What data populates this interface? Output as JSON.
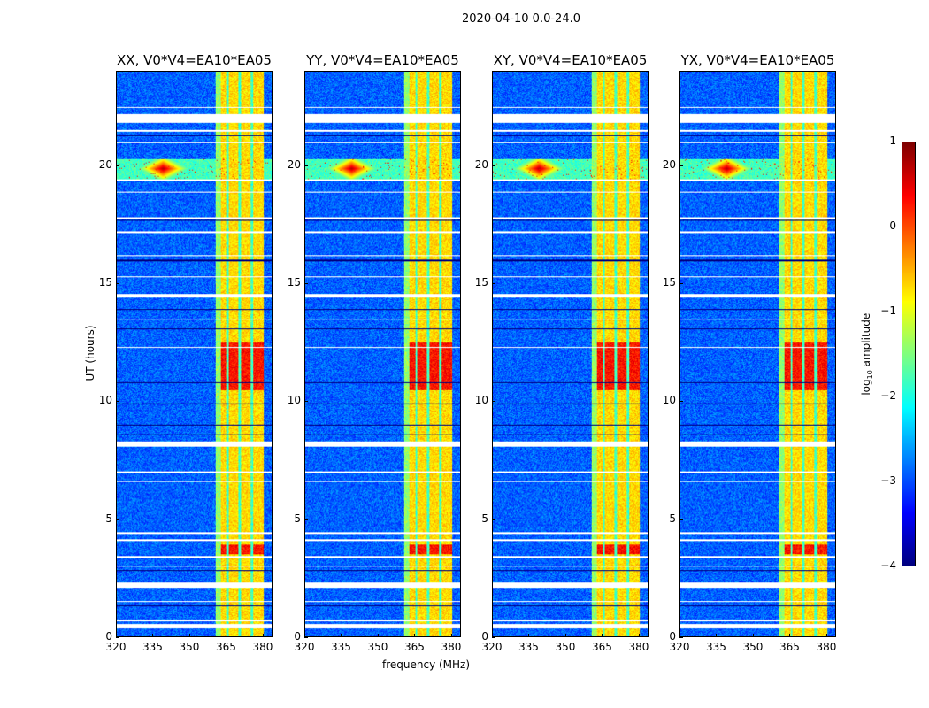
{
  "chart_data": {
    "type": "heatmap",
    "title": "2020-04-10 0.0-24.0",
    "xlabel": "frequency (MHz)",
    "ylabel": "UT (hours)",
    "xlim": [
      320,
      384
    ],
    "ylim": [
      0,
      24
    ],
    "xticks": [
      "320",
      "335",
      "350",
      "365",
      "380"
    ],
    "xtick_values": [
      320,
      335,
      350,
      365,
      380
    ],
    "yticks": [
      "0",
      "5",
      "10",
      "15",
      "20"
    ],
    "ytick_values": [
      0,
      5,
      10,
      15,
      20
    ],
    "panels": [
      {
        "title": "XX, V0*V4=EA10*EA05"
      },
      {
        "title": "YY, V0*V4=EA10*EA05"
      },
      {
        "title": "XY, V0*V4=EA10*EA05"
      },
      {
        "title": "YX, V0*V4=EA10*EA05"
      }
    ],
    "colorbar": {
      "label_main": "log",
      "label_sub": "10",
      "label_rest": " amplitude",
      "range": [
        -4,
        1
      ],
      "ticks": [
        "1",
        "0",
        "−1",
        "−2",
        "−3",
        "−4"
      ],
      "tick_values": [
        1,
        0,
        -1,
        -2,
        -3,
        -4
      ],
      "colormap": "jet"
    },
    "features": {
      "background_level": -2.9,
      "rfi_band_mhz": [
        360.7,
        380.4
      ],
      "rfi_band_level": -0.7,
      "rfi_band_gaps_mhz": [
        365.7,
        370.5,
        375.6
      ],
      "flagged_hours": [
        [
          0.35,
          0.55
        ],
        [
          2.1,
          2.3
        ],
        [
          8.1,
          8.3
        ],
        [
          14.4,
          14.55
        ],
        [
          21.85,
          22.2
        ]
      ],
      "flag_lines_hours": [
        0.7,
        1.5,
        3.0,
        3.4,
        4.1,
        4.4,
        6.6,
        7.0,
        12.3,
        13.5,
        15.3,
        16.2,
        17.2,
        17.8,
        18.9,
        19.4,
        21.0,
        21.5,
        22.5
      ],
      "dark_lines_hours": [
        1.3,
        2.8,
        8.6,
        9.0,
        9.9,
        10.8,
        13.1,
        13.9,
        16.0,
        17.7,
        21.3
      ],
      "intense_hours": [
        [
          10.5,
          12.5
        ],
        [
          3.5,
          3.9
        ]
      ],
      "intense_level": 0.3,
      "broadband_event_hours": [
        19.4,
        20.3
      ],
      "hotspot": {
        "mhz": 339,
        "hour": 19.9,
        "level": 0.8
      }
    }
  }
}
